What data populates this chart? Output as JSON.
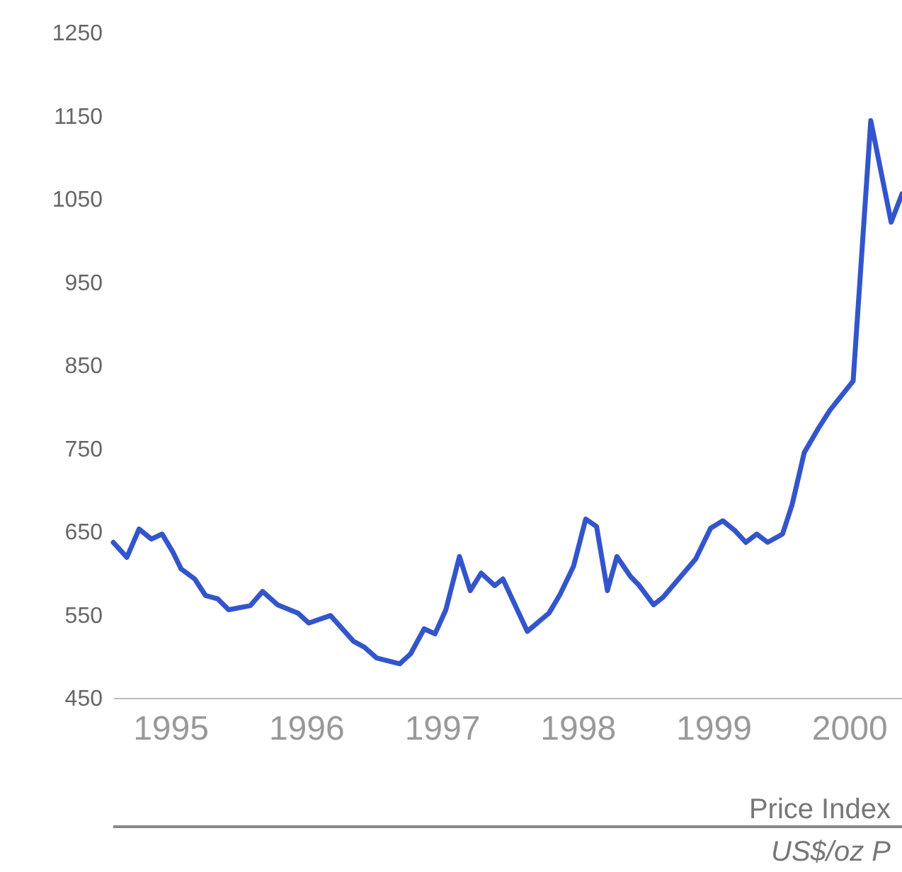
{
  "chart_data": {
    "type": "line",
    "x": [
      1995.08,
      1995.18,
      1995.27,
      1995.36,
      1995.44,
      1995.52,
      1995.58,
      1995.68,
      1995.76,
      1995.85,
      1995.93,
      1996.09,
      1996.18,
      1996.29,
      1996.44,
      1996.52,
      1996.68,
      1996.85,
      1996.93,
      1997.02,
      1997.19,
      1997.27,
      1997.37,
      1997.45,
      1997.53,
      1997.63,
      1997.71,
      1997.79,
      1997.89,
      1997.95,
      1998.13,
      1998.29,
      1998.37,
      1998.47,
      1998.56,
      1998.64,
      1998.72,
      1998.79,
      1998.89,
      1998.95,
      1999.06,
      1999.13,
      1999.37,
      1999.48,
      1999.57,
      1999.66,
      1999.74,
      1999.82,
      1999.9,
      2000.01,
      2000.08,
      2000.17,
      2000.27,
      2000.36,
      2000.53,
      2000.66,
      2000.81,
      2000.89
    ],
    "series": [
      {
        "color": "#3355cc",
        "values": [
          637,
          619,
          653,
          641,
          647,
          625,
          605,
          593,
          573,
          569,
          556,
          561,
          578,
          562,
          552,
          540,
          549,
          518,
          511,
          498,
          491,
          503,
          533,
          527,
          556,
          620,
          579,
          600,
          585,
          593,
          530,
          552,
          574,
          608,
          665,
          656,
          579,
          620,
          596,
          586,
          562,
          571,
          617,
          654,
          663,
          651,
          637,
          647,
          637,
          647,
          682,
          745,
          773,
          796,
          831,
          1144,
          1022,
          1056
        ]
      }
    ],
    "xlim": [
      1995.08,
      2000.89
    ],
    "xticks": [
      {
        "value": 1995.5,
        "label": "1995"
      },
      {
        "value": 1996.5,
        "label": "1996"
      },
      {
        "value": 1997.5,
        "label": "1997"
      },
      {
        "value": 1998.5,
        "label": "1998"
      },
      {
        "value": 1999.5,
        "label": "1999"
      },
      {
        "value": 2000.5,
        "label": "2000"
      }
    ],
    "ylim": [
      450,
      1250
    ],
    "yticks": [
      450,
      550,
      650,
      750,
      850,
      950,
      1050,
      1150,
      1250
    ],
    "grid": false,
    "marker": "none",
    "line_style": "solid",
    "annotations": [
      "Price Index",
      "US$/oz P"
    ]
  }
}
